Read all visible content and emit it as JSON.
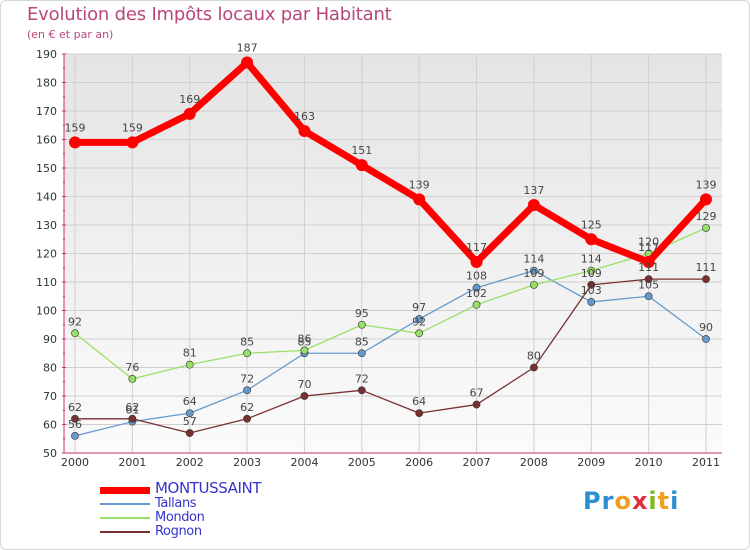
{
  "title": "Evolution des Impôts locaux par Habitant",
  "subtitle": "(en € et par an)",
  "brand": {
    "parts": [
      "Pr",
      "o",
      "x",
      "i",
      "t",
      "i"
    ],
    "colors": [
      "#2a8fd0",
      "#f0a020",
      "#e03040",
      "#80b820",
      "#f0a020",
      "#2a8fd0"
    ]
  },
  "chart_data": {
    "type": "line",
    "title": "Evolution des Impôts locaux par Habitant",
    "subtitle": "(en € et par an)",
    "xlabel": "",
    "ylabel": "",
    "categories": [
      "2000",
      "2001",
      "2002",
      "2003",
      "2004",
      "2005",
      "2006",
      "2007",
      "2008",
      "2009",
      "2010",
      "2011"
    ],
    "ylim": [
      50,
      190
    ],
    "yticks": [
      50,
      60,
      70,
      80,
      90,
      100,
      110,
      120,
      130,
      140,
      150,
      160,
      170,
      180,
      190
    ],
    "grid": true,
    "legend_position": "bottom-left",
    "series": [
      {
        "name": "MONTUSSAINT",
        "color": "#ff0000",
        "values": [
          159,
          159,
          169,
          187,
          163,
          151,
          139,
          117,
          137,
          125,
          117,
          139
        ],
        "labels": [
          "159",
          "159",
          "169",
          "187",
          "163",
          "151",
          "139",
          "117",
          "137",
          "125",
          "117",
          "139"
        ],
        "emphasis": true
      },
      {
        "name": "Tallans",
        "color": "#6699cc",
        "values": [
          56,
          61,
          64,
          72,
          85,
          85,
          97,
          108,
          114,
          103,
          105,
          90
        ],
        "labels": [
          "56",
          "61",
          "64",
          "72",
          "85",
          "85",
          "97",
          "108",
          "114",
          "103",
          "105",
          "90"
        ],
        "emphasis": false
      },
      {
        "name": "Mondon",
        "color": "#99e066",
        "values": [
          92,
          76,
          81,
          85,
          86,
          95,
          92,
          102,
          109,
          114,
          120,
          129
        ],
        "labels": [
          "92",
          "76",
          "81",
          "85",
          "86",
          "95",
          "92",
          "102",
          "109",
          "114",
          "120",
          "129"
        ],
        "emphasis": false
      },
      {
        "name": "Rognon",
        "color": "#7a3030",
        "values": [
          62,
          62,
          57,
          62,
          70,
          72,
          64,
          67,
          80,
          109,
          111,
          111
        ],
        "labels": [
          "62",
          "62",
          "57",
          "62",
          "70",
          "72",
          "64",
          "67",
          "80",
          "109",
          "111",
          "111"
        ],
        "emphasis": false
      }
    ]
  }
}
